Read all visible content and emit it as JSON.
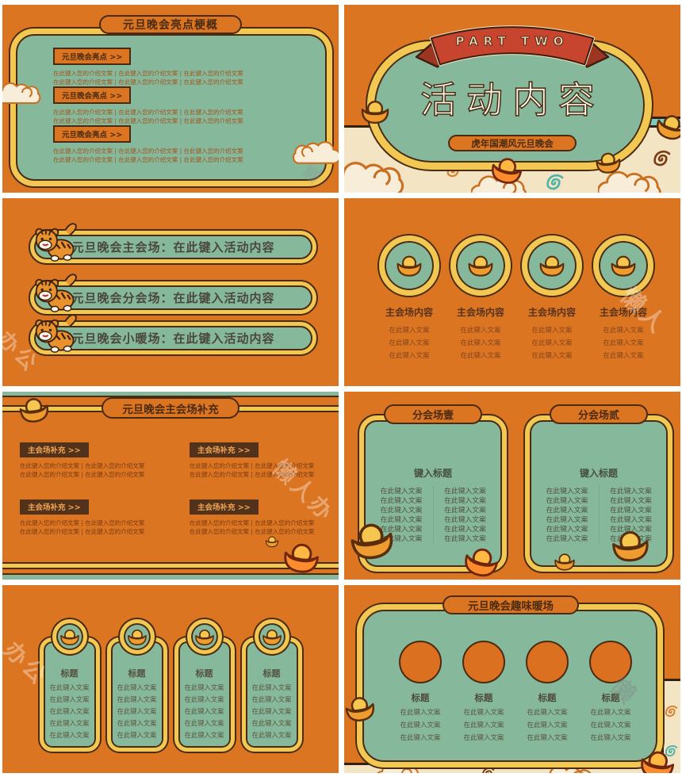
{
  "watermarks": [
    "办公",
    "懒人",
    "懒人办",
    "办公",
    "懒",
    "懒"
  ],
  "colors": {
    "background_orange": "#DC7522",
    "panel_green": "#86B89B",
    "border_yellow": "#F2C853",
    "outline_dark_brown": "#4A2B11",
    "ribbon_red": "#C7452E",
    "cloud_cream": "#F3E4C3",
    "accent_teal": "#7FC9BF",
    "label_dark_brown": "#52321B"
  },
  "slides": {
    "s1": {
      "title": "元旦晚会亮点梗概",
      "label": "元旦晚会亮点 >>",
      "intro_line": "在此键入您的介绍文案  |  在此键入您的介绍文案  |  在此键入您的介绍文案"
    },
    "s2": {
      "part": "PART TWO",
      "title": "活动内容",
      "subtitle": "虎年国潮风元旦晚会"
    },
    "s3": {
      "rows": [
        "元旦晚会主会场：在此键入活动内容",
        "元旦晚会分会场：在此键入活动内容",
        "元旦晚会小暖场：在此键入活动内容"
      ]
    },
    "s4": {
      "heading": "主会场内容",
      "line": "在此键入文案"
    },
    "s5": {
      "title": "元旦晚会主会场补充",
      "label": "主会场补充 >>",
      "line": "在此键入您的介绍文案  |  在此键入您的介绍文案"
    },
    "s6": {
      "headers": [
        "分会场壹",
        "分会场贰"
      ],
      "subtitle": "键入标题",
      "item": "在此键入文案"
    },
    "s7": {
      "heading": "标题",
      "item": "在此键入文案"
    },
    "s8": {
      "title": "元旦晚会趣味暖场",
      "heading": "标题",
      "item": "在此键入文案"
    }
  }
}
